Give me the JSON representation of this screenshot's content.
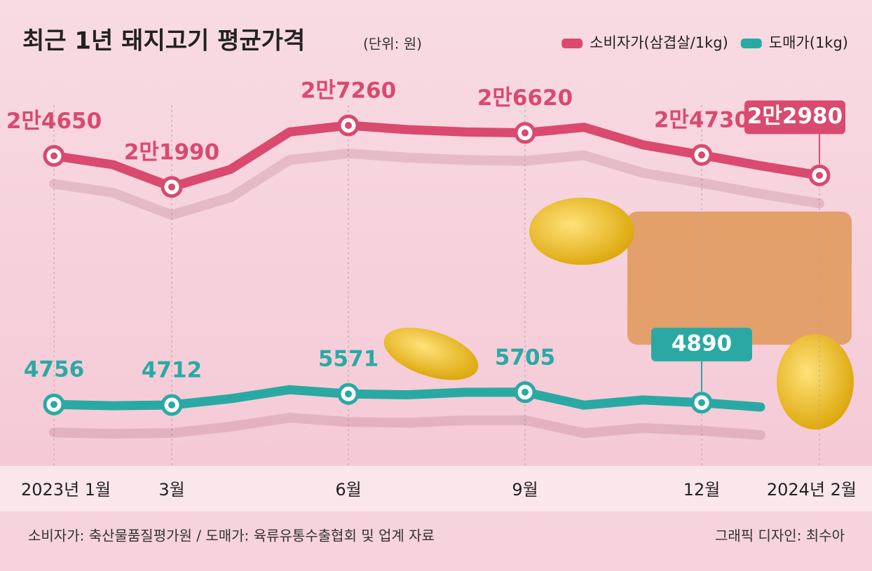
{
  "chart_data": {
    "type": "line",
    "title": "최근 1년 돼지고기 평균가격",
    "subtitle": "(단위: 원)",
    "categories": [
      "2023년 1월",
      null,
      "3월",
      null,
      null,
      "6월",
      null,
      null,
      "9월",
      null,
      null,
      "12월",
      null,
      "2024년 2월"
    ],
    "series": [
      {
        "name": "소비자가(삼겹살/1kg)",
        "color": "#d94a6e",
        "values": [
          24650,
          23900,
          21990,
          23500,
          26700,
          27260,
          26900,
          26700,
          26620,
          27100,
          25600,
          24730,
          23800,
          22980
        ],
        "value_labels": [
          "2만4650",
          null,
          "2만1990",
          null,
          null,
          "2만7260",
          null,
          null,
          "2만6620",
          null,
          null,
          "2만4730",
          null,
          "2만2980"
        ]
      },
      {
        "name": "도매가(1kg)",
        "color": "#2aa9a4",
        "axis": "y2",
        "values": [
          4756,
          4650,
          4712,
          5200,
          5900,
          5571,
          5500,
          5700,
          5705,
          4700,
          5100,
          4890,
          4550,
          null
        ],
        "value_labels": [
          "4756",
          null,
          "4712",
          null,
          null,
          "5571",
          null,
          null,
          "5705",
          null,
          null,
          "4890",
          null,
          null
        ]
      }
    ],
    "ylim": [
      -1000,
      32000
    ],
    "y2lim": [
      800,
      30700
    ],
    "source": "소비자가: 축산물품질평가원 / 도매가: 육류유통수출협회 및 업계 자료",
    "credit": "그래픽 디자인: 최수아"
  }
}
